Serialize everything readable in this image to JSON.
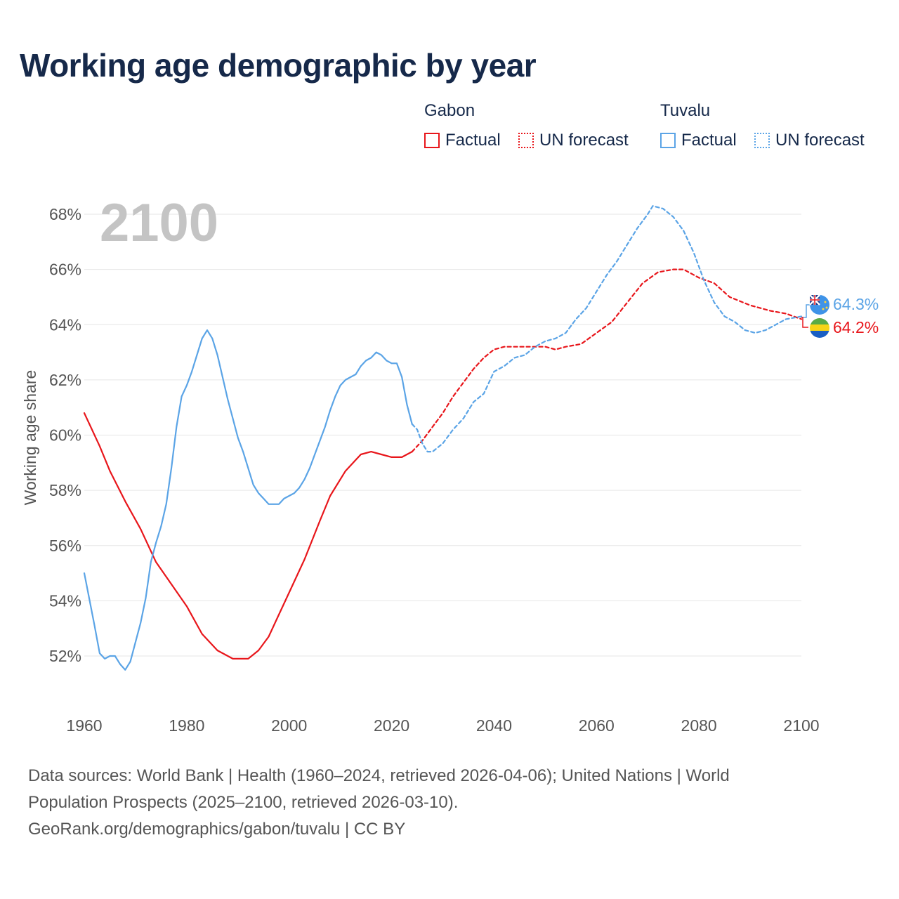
{
  "title": "Working age demographic by year",
  "legend": {
    "groups": [
      {
        "country": "Gabon",
        "color": "#e8161b",
        "factual_label": "Factual",
        "forecast_label": "UN forecast"
      },
      {
        "country": "Tuvalu",
        "color": "#5ba4e6",
        "factual_label": "Factual",
        "forecast_label": "UN forecast"
      }
    ]
  },
  "year_watermark": "2100",
  "end_labels": {
    "tuvalu": "64.3%",
    "gabon": "64.2%"
  },
  "footer": {
    "line1": "Data sources: World Bank | Health (1960–2024, retrieved 2026-04-06); United Nations | World",
    "line2": "Population Prospects (2025–2100, retrieved 2026-03-10).",
    "line3": "GeoRank.org/demographics/gabon/tuvalu | CC BY"
  },
  "chart_data": {
    "type": "line",
    "title": "Working age demographic by year",
    "xlabel": "",
    "ylabel": "Working age share",
    "xlim": [
      1960,
      2100
    ],
    "ylim": [
      50.5,
      69.5
    ],
    "x_ticks": [
      1960,
      1980,
      2000,
      2020,
      2040,
      2060,
      2080,
      2100
    ],
    "y_ticks": [
      52,
      54,
      56,
      58,
      60,
      62,
      64,
      66,
      68
    ],
    "y_tick_suffix": "%",
    "grid": true,
    "series": [
      {
        "name": "Gabon",
        "segment": "Factual",
        "color": "#e8161b",
        "dashed": false,
        "points": [
          [
            1960,
            60.8
          ],
          [
            1963,
            59.6
          ],
          [
            1965,
            58.7
          ],
          [
            1968,
            57.6
          ],
          [
            1971,
            56.6
          ],
          [
            1974,
            55.4
          ],
          [
            1977,
            54.6
          ],
          [
            1980,
            53.8
          ],
          [
            1983,
            52.8
          ],
          [
            1986,
            52.2
          ],
          [
            1989,
            51.9
          ],
          [
            1992,
            51.9
          ],
          [
            1994,
            52.2
          ],
          [
            1996,
            52.7
          ],
          [
            1998,
            53.5
          ],
          [
            2000,
            54.3
          ],
          [
            2003,
            55.5
          ],
          [
            2006,
            56.9
          ],
          [
            2008,
            57.8
          ],
          [
            2011,
            58.7
          ],
          [
            2014,
            59.3
          ],
          [
            2016,
            59.4
          ],
          [
            2018,
            59.3
          ],
          [
            2020,
            59.2
          ],
          [
            2022,
            59.2
          ],
          [
            2024,
            59.4
          ]
        ]
      },
      {
        "name": "Gabon",
        "segment": "UN forecast",
        "color": "#e8161b",
        "dashed": true,
        "points": [
          [
            2024,
            59.4
          ],
          [
            2026,
            59.8
          ],
          [
            2028,
            60.3
          ],
          [
            2030,
            60.8
          ],
          [
            2032,
            61.4
          ],
          [
            2034,
            61.9
          ],
          [
            2036,
            62.4
          ],
          [
            2038,
            62.8
          ],
          [
            2040,
            63.1
          ],
          [
            2042,
            63.2
          ],
          [
            2046,
            63.2
          ],
          [
            2050,
            63.2
          ],
          [
            2052,
            63.1
          ],
          [
            2054,
            63.2
          ],
          [
            2057,
            63.3
          ],
          [
            2060,
            63.7
          ],
          [
            2063,
            64.1
          ],
          [
            2066,
            64.8
          ],
          [
            2069,
            65.5
          ],
          [
            2072,
            65.9
          ],
          [
            2075,
            66.0
          ],
          [
            2077,
            66.0
          ],
          [
            2080,
            65.7
          ],
          [
            2083,
            65.5
          ],
          [
            2086,
            65.0
          ],
          [
            2090,
            64.7
          ],
          [
            2094,
            64.5
          ],
          [
            2097,
            64.4
          ],
          [
            2100,
            64.2
          ]
        ]
      },
      {
        "name": "Tuvalu",
        "segment": "Factual",
        "color": "#5ba4e6",
        "dashed": false,
        "points": [
          [
            1960,
            55.0
          ],
          [
            1962,
            53.1
          ],
          [
            1963,
            52.1
          ],
          [
            1964,
            51.9
          ],
          [
            1965,
            52.0
          ],
          [
            1966,
            52.0
          ],
          [
            1967,
            51.7
          ],
          [
            1968,
            51.5
          ],
          [
            1969,
            51.8
          ],
          [
            1970,
            52.5
          ],
          [
            1971,
            53.2
          ],
          [
            1972,
            54.1
          ],
          [
            1973,
            55.4
          ],
          [
            1974,
            56.1
          ],
          [
            1975,
            56.7
          ],
          [
            1976,
            57.5
          ],
          [
            1977,
            58.8
          ],
          [
            1978,
            60.3
          ],
          [
            1979,
            61.4
          ],
          [
            1980,
            61.8
          ],
          [
            1981,
            62.3
          ],
          [
            1982,
            62.9
          ],
          [
            1983,
            63.5
          ],
          [
            1984,
            63.8
          ],
          [
            1985,
            63.5
          ],
          [
            1986,
            62.9
          ],
          [
            1987,
            62.1
          ],
          [
            1988,
            61.3
          ],
          [
            1989,
            60.6
          ],
          [
            1990,
            59.9
          ],
          [
            1991,
            59.4
          ],
          [
            1992,
            58.8
          ],
          [
            1993,
            58.2
          ],
          [
            1994,
            57.9
          ],
          [
            1995,
            57.7
          ],
          [
            1996,
            57.5
          ],
          [
            1998,
            57.5
          ],
          [
            1999,
            57.7
          ],
          [
            2001,
            57.9
          ],
          [
            2002,
            58.1
          ],
          [
            2003,
            58.4
          ],
          [
            2004,
            58.8
          ],
          [
            2005,
            59.3
          ],
          [
            2006,
            59.8
          ],
          [
            2007,
            60.3
          ],
          [
            2008,
            60.9
          ],
          [
            2009,
            61.4
          ],
          [
            2010,
            61.8
          ],
          [
            2011,
            62.0
          ],
          [
            2012,
            62.1
          ],
          [
            2013,
            62.2
          ],
          [
            2014,
            62.5
          ],
          [
            2015,
            62.7
          ],
          [
            2016,
            62.8
          ],
          [
            2017,
            63.0
          ],
          [
            2018,
            62.9
          ],
          [
            2019,
            62.7
          ],
          [
            2020,
            62.6
          ],
          [
            2021,
            62.6
          ],
          [
            2022,
            62.1
          ],
          [
            2023,
            61.1
          ],
          [
            2024,
            60.4
          ]
        ]
      },
      {
        "name": "Tuvalu",
        "segment": "UN forecast",
        "color": "#5ba4e6",
        "dashed": true,
        "points": [
          [
            2024,
            60.4
          ],
          [
            2025,
            60.2
          ],
          [
            2026,
            59.7
          ],
          [
            2027,
            59.4
          ],
          [
            2028,
            59.4
          ],
          [
            2030,
            59.7
          ],
          [
            2032,
            60.2
          ],
          [
            2034,
            60.6
          ],
          [
            2036,
            61.2
          ],
          [
            2038,
            61.5
          ],
          [
            2040,
            62.3
          ],
          [
            2042,
            62.5
          ],
          [
            2044,
            62.8
          ],
          [
            2046,
            62.9
          ],
          [
            2048,
            63.2
          ],
          [
            2050,
            63.4
          ],
          [
            2052,
            63.5
          ],
          [
            2054,
            63.7
          ],
          [
            2056,
            64.2
          ],
          [
            2058,
            64.6
          ],
          [
            2060,
            65.2
          ],
          [
            2062,
            65.8
          ],
          [
            2064,
            66.3
          ],
          [
            2066,
            66.9
          ],
          [
            2068,
            67.5
          ],
          [
            2070,
            68.0
          ],
          [
            2071,
            68.3
          ],
          [
            2073,
            68.2
          ],
          [
            2075,
            67.9
          ],
          [
            2077,
            67.4
          ],
          [
            2079,
            66.6
          ],
          [
            2081,
            65.6
          ],
          [
            2083,
            64.8
          ],
          [
            2085,
            64.3
          ],
          [
            2087,
            64.1
          ],
          [
            2089,
            63.8
          ],
          [
            2091,
            63.7
          ],
          [
            2093,
            63.8
          ],
          [
            2095,
            64.0
          ],
          [
            2097,
            64.2
          ],
          [
            2100,
            64.3
          ]
        ]
      }
    ]
  }
}
